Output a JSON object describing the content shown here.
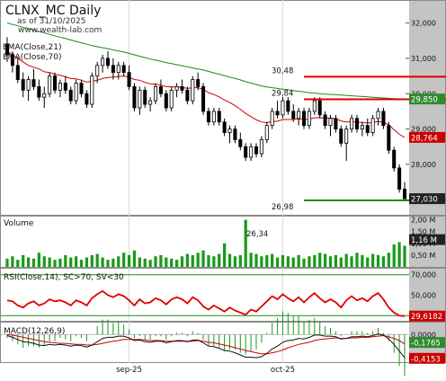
{
  "header": {
    "title": "CLNX_MC Daily",
    "subtitle": "as of 31/10/2025",
    "source": "www.wealth-lab.com"
  },
  "indicators": {
    "ema21_label": "EMA(Close,21)",
    "ema70_label": "EMA(Close,70)",
    "volume_label": "Volume",
    "rsi_label": "RSI(Close,14), SC>70, SV<30",
    "macd_label": "MACD(12,26,9)"
  },
  "colors": {
    "ema21": "#cc0000",
    "ema70": "#1a8a1a",
    "volume": "#1a9a1a",
    "rsi": "#dd0000",
    "rsi_bands": "#1a8a1a",
    "macd": "#111111",
    "macd_signal": "#cc0000",
    "macd_hist": "#1a9a1a",
    "axis_bg": "#c0c0c0",
    "resistance": "#dd0000",
    "support": "#1a8a1a"
  },
  "chart_data": [
    {
      "type": "candlestick",
      "ylim": [
        26.6,
        32.6
      ],
      "y_ticks": [
        27,
        28,
        29,
        30,
        31,
        32
      ],
      "y_tick_labels": [
        "27,000",
        "28,000",
        "29,000",
        "30,000",
        "31,000",
        "32,000"
      ],
      "x_tick_labels": [
        {
          "label": "sep-25",
          "index": 23
        },
        {
          "label": "oct-25",
          "index": 52
        }
      ],
      "candles": [
        [
          31.4,
          31.6,
          30.9,
          31.1
        ],
        [
          31.1,
          31.2,
          30.6,
          30.8
        ],
        [
          30.8,
          31.0,
          30.3,
          30.4
        ],
        [
          30.4,
          30.6,
          29.9,
          30.1
        ],
        [
          30.1,
          30.5,
          29.8,
          30.4
        ],
        [
          30.4,
          30.7,
          30.1,
          30.2
        ],
        [
          30.2,
          30.4,
          29.8,
          29.9
        ],
        [
          29.9,
          30.2,
          29.6,
          30.0
        ],
        [
          30.0,
          30.6,
          29.9,
          30.5
        ],
        [
          30.5,
          30.6,
          30.0,
          30.1
        ],
        [
          30.1,
          30.4,
          29.9,
          30.3
        ],
        [
          30.3,
          30.5,
          30.0,
          30.1
        ],
        [
          30.1,
          30.2,
          29.7,
          29.8
        ],
        [
          29.8,
          30.4,
          29.7,
          30.3
        ],
        [
          30.3,
          30.4,
          29.9,
          30.0
        ],
        [
          30.0,
          30.1,
          29.6,
          29.7
        ],
        [
          29.7,
          30.6,
          29.6,
          30.5
        ],
        [
          30.5,
          30.9,
          30.3,
          30.8
        ],
        [
          30.8,
          31.1,
          30.6,
          31.0
        ],
        [
          31.0,
          31.2,
          30.7,
          30.8
        ],
        [
          30.8,
          31.0,
          30.4,
          30.6
        ],
        [
          30.6,
          30.9,
          30.4,
          30.8
        ],
        [
          30.8,
          30.9,
          30.5,
          30.6
        ],
        [
          30.6,
          30.8,
          30.1,
          30.2
        ],
        [
          30.2,
          30.3,
          29.5,
          29.6
        ],
        [
          29.6,
          30.2,
          29.4,
          30.1
        ],
        [
          30.1,
          30.2,
          29.6,
          29.7
        ],
        [
          29.7,
          29.9,
          29.5,
          29.8
        ],
        [
          29.8,
          30.3,
          29.7,
          30.2
        ],
        [
          30.2,
          30.4,
          29.9,
          30.0
        ],
        [
          30.0,
          30.1,
          29.5,
          29.6
        ],
        [
          29.6,
          30.2,
          29.5,
          30.1
        ],
        [
          30.1,
          30.3,
          29.9,
          30.2
        ],
        [
          30.2,
          30.4,
          30.0,
          30.1
        ],
        [
          30.1,
          30.2,
          29.7,
          29.8
        ],
        [
          29.8,
          30.5,
          29.7,
          30.4
        ],
        [
          30.4,
          30.6,
          30.1,
          30.2
        ],
        [
          30.2,
          30.3,
          29.4,
          29.5
        ],
        [
          29.5,
          29.6,
          29.1,
          29.2
        ],
        [
          29.2,
          29.6,
          29.1,
          29.5
        ],
        [
          29.5,
          29.6,
          29.1,
          29.2
        ],
        [
          29.2,
          29.3,
          28.8,
          28.9
        ],
        [
          28.9,
          29.1,
          28.6,
          29.0
        ],
        [
          29.0,
          29.1,
          28.6,
          28.7
        ],
        [
          28.7,
          28.9,
          28.4,
          28.5
        ],
        [
          28.5,
          28.6,
          28.1,
          28.2
        ],
        [
          28.2,
          28.6,
          28.1,
          28.5
        ],
        [
          28.5,
          28.6,
          28.2,
          28.3
        ],
        [
          28.3,
          28.8,
          28.2,
          28.7
        ],
        [
          28.7,
          29.2,
          28.6,
          29.1
        ],
        [
          29.1,
          29.6,
          29.0,
          29.5
        ],
        [
          29.5,
          29.8,
          29.3,
          29.4
        ],
        [
          29.4,
          29.9,
          29.3,
          29.8
        ],
        [
          29.8,
          29.9,
          29.4,
          29.5
        ],
        [
          29.5,
          29.7,
          29.2,
          29.3
        ],
        [
          29.3,
          29.6,
          29.1,
          29.5
        ],
        [
          29.5,
          29.6,
          29.0,
          29.1
        ],
        [
          29.1,
          29.6,
          29.0,
          29.5
        ],
        [
          29.5,
          29.9,
          29.4,
          29.8
        ],
        [
          29.8,
          29.9,
          29.3,
          29.4
        ],
        [
          29.4,
          29.5,
          29.0,
          29.1
        ],
        [
          29.1,
          29.4,
          28.8,
          29.3
        ],
        [
          29.3,
          29.4,
          28.9,
          29.0
        ],
        [
          29.0,
          29.1,
          28.5,
          28.6
        ],
        [
          28.6,
          29.1,
          28.1,
          29.0
        ],
        [
          29.0,
          29.4,
          28.9,
          29.3
        ],
        [
          29.3,
          29.4,
          28.9,
          29.0
        ],
        [
          29.0,
          29.2,
          28.8,
          29.1
        ],
        [
          29.1,
          29.3,
          28.8,
          28.9
        ],
        [
          28.9,
          29.4,
          28.8,
          29.3
        ],
        [
          29.3,
          29.6,
          29.1,
          29.5
        ],
        [
          29.5,
          29.6,
          29.0,
          29.1
        ],
        [
          29.1,
          29.2,
          28.3,
          28.4
        ],
        [
          28.4,
          28.5,
          27.8,
          27.9
        ],
        [
          27.9,
          28.0,
          27.2,
          27.3
        ],
        [
          27.3,
          27.5,
          26.98,
          27.03
        ]
      ],
      "ema21": [
        31.2,
        31.1,
        31.0,
        30.9,
        30.8,
        30.75,
        30.7,
        30.62,
        30.6,
        30.55,
        30.52,
        30.48,
        30.43,
        30.42,
        30.38,
        30.33,
        30.35,
        30.38,
        30.43,
        30.46,
        30.47,
        30.49,
        30.5,
        30.47,
        30.4,
        30.38,
        30.32,
        30.28,
        30.27,
        30.24,
        30.2,
        30.19,
        30.19,
        30.18,
        30.15,
        30.17,
        30.17,
        30.12,
        30.03,
        29.98,
        29.91,
        29.82,
        29.75,
        29.66,
        29.56,
        29.44,
        29.35,
        29.26,
        29.2,
        29.18,
        29.21,
        29.22,
        29.27,
        29.27,
        29.27,
        29.29,
        29.27,
        29.28,
        29.32,
        29.32,
        29.31,
        29.31,
        29.29,
        29.23,
        29.2,
        29.21,
        29.19,
        29.19,
        29.17,
        29.18,
        29.21,
        29.2,
        29.12,
        28.98,
        28.85,
        28.76
      ],
      "ema70": [
        32.0,
        31.96,
        31.92,
        31.88,
        31.84,
        31.8,
        31.76,
        31.72,
        31.68,
        31.64,
        31.6,
        31.56,
        31.52,
        31.48,
        31.44,
        31.4,
        31.36,
        31.33,
        31.3,
        31.27,
        31.24,
        31.21,
        31.18,
        31.14,
        31.1,
        31.06,
        31.02,
        30.98,
        30.95,
        30.92,
        30.88,
        30.85,
        30.82,
        30.79,
        30.76,
        30.73,
        30.7,
        30.67,
        30.63,
        30.59,
        30.55,
        30.51,
        30.47,
        30.43,
        30.39,
        30.34,
        30.3,
        30.26,
        30.22,
        30.19,
        30.17,
        30.15,
        30.13,
        30.11,
        30.09,
        30.07,
        30.05,
        30.03,
        30.02,
        30.0,
        29.99,
        29.98,
        29.97,
        29.96,
        29.95,
        29.94,
        29.93,
        29.92,
        29.91,
        29.9,
        29.89,
        29.88,
        29.87,
        29.86,
        29.855,
        29.85
      ],
      "levels": [
        {
          "label": "30,48",
          "value": 30.48,
          "from_index": 56,
          "to_index": 84,
          "color": "red"
        },
        {
          "label": "29,84",
          "value": 29.84,
          "from_index": 56,
          "to_index": 84,
          "color": "red"
        },
        {
          "label": "26,98",
          "value": 26.98,
          "from_index": 56,
          "to_index": 84,
          "color": "green"
        }
      ],
      "last_values": [
        {
          "series": "ema70",
          "label": "29,850",
          "value": 29.85
        },
        {
          "series": "ema21",
          "label": "28,764",
          "value": 28.764
        },
        {
          "series": "close",
          "label": "27,030",
          "value": 27.03
        }
      ]
    },
    {
      "type": "bar",
      "ylim": [
        0,
        2.1
      ],
      "y_ticks": [
        0.5,
        1.0,
        1.5,
        2.0
      ],
      "y_tick_labels": [
        "0,50 M",
        "1,00 M",
        "1,50 M",
        "2,00 M"
      ],
      "annotation": {
        "label": "26,34"
      },
      "values": [
        0.35,
        0.45,
        0.3,
        0.5,
        0.4,
        0.35,
        0.6,
        0.45,
        0.4,
        0.3,
        0.35,
        0.5,
        0.4,
        0.45,
        0.3,
        0.4,
        0.5,
        0.55,
        0.4,
        0.3,
        0.35,
        0.45,
        0.6,
        0.5,
        0.7,
        0.4,
        0.35,
        0.3,
        0.45,
        0.5,
        0.4,
        0.35,
        0.3,
        0.45,
        0.55,
        0.5,
        0.6,
        0.7,
        0.5,
        0.45,
        0.55,
        1.0,
        0.55,
        0.45,
        0.5,
        2.0,
        0.6,
        0.55,
        0.45,
        0.5,
        0.55,
        0.4,
        0.5,
        0.45,
        0.4,
        0.5,
        0.35,
        0.45,
        0.5,
        0.6,
        0.55,
        0.45,
        0.5,
        0.4,
        0.55,
        0.45,
        0.6,
        0.5,
        0.4,
        0.55,
        0.5,
        0.45,
        0.6,
        0.95,
        1.05,
        0.9
      ],
      "last_label": "1,16 M",
      "last_value": 1.16
    },
    {
      "type": "line",
      "ylim": [
        25,
        75
      ],
      "y_ticks": [
        30,
        50,
        70
      ],
      "y_tick_labels": [
        "30,000",
        "50,000",
        "70,000"
      ],
      "bands": [
        30,
        70
      ],
      "values": [
        45,
        44,
        40,
        38,
        42,
        44,
        40,
        42,
        46,
        44,
        45,
        43,
        40,
        45,
        43,
        40,
        47,
        51,
        54,
        50,
        48,
        51,
        49,
        45,
        40,
        46,
        42,
        43,
        47,
        45,
        41,
        46,
        48,
        46,
        42,
        48,
        45,
        39,
        36,
        40,
        37,
        34,
        38,
        35,
        33,
        31,
        36,
        34,
        39,
        44,
        49,
        46,
        51,
        47,
        44,
        48,
        43,
        48,
        52,
        47,
        43,
        46,
        43,
        38,
        45,
        49,
        45,
        47,
        44,
        49,
        52,
        46,
        38,
        33,
        30,
        29.6
      ],
      "last_label": "29,6182",
      "last_value": 29.6182
    },
    {
      "type": "line",
      "ylim": [
        -0.5,
        0.2
      ],
      "y_ticks": [
        0.0
      ],
      "y_tick_labels": [
        "0,0000"
      ],
      "series": [
        {
          "name": "MACD",
          "values": [
            -0.02,
            -0.05,
            -0.09,
            -0.13,
            -0.14,
            -0.16,
            -0.19,
            -0.2,
            -0.18,
            -0.19,
            -0.18,
            -0.19,
            -0.21,
            -0.19,
            -0.2,
            -0.23,
            -0.19,
            -0.13,
            -0.07,
            -0.05,
            -0.05,
            -0.03,
            -0.03,
            -0.06,
            -0.11,
            -0.1,
            -0.13,
            -0.14,
            -0.12,
            -0.12,
            -0.15,
            -0.13,
            -0.11,
            -0.11,
            -0.13,
            -0.1,
            -0.1,
            -0.15,
            -0.21,
            -0.22,
            -0.25,
            -0.29,
            -0.3,
            -0.33,
            -0.37,
            -0.41,
            -0.41,
            -0.42,
            -0.4,
            -0.34,
            -0.26,
            -0.21,
            -0.14,
            -0.11,
            -0.1,
            -0.07,
            -0.08,
            -0.05,
            -0.01,
            -0.01,
            -0.03,
            -0.03,
            -0.04,
            -0.08,
            -0.07,
            -0.04,
            -0.04,
            -0.03,
            -0.04,
            -0.02,
            0.01,
            -0.01,
            -0.08,
            -0.18,
            -0.3,
            -0.42
          ]
        },
        {
          "name": "Signal",
          "values": [
            0.0,
            -0.01,
            -0.03,
            -0.05,
            -0.07,
            -0.09,
            -0.11,
            -0.13,
            -0.14,
            -0.15,
            -0.16,
            -0.16,
            -0.17,
            -0.18,
            -0.18,
            -0.19,
            -0.19,
            -0.18,
            -0.16,
            -0.14,
            -0.12,
            -0.11,
            -0.09,
            -0.09,
            -0.09,
            -0.09,
            -0.1,
            -0.11,
            -0.11,
            -0.11,
            -0.12,
            -0.12,
            -0.12,
            -0.12,
            -0.12,
            -0.12,
            -0.11,
            -0.12,
            -0.14,
            -0.15,
            -0.17,
            -0.19,
            -0.21,
            -0.24,
            -0.26,
            -0.29,
            -0.31,
            -0.33,
            -0.35,
            -0.35,
            -0.33,
            -0.31,
            -0.28,
            -0.24,
            -0.21,
            -0.18,
            -0.16,
            -0.14,
            -0.11,
            -0.09,
            -0.08,
            -0.07,
            -0.06,
            -0.07,
            -0.07,
            -0.06,
            -0.06,
            -0.05,
            -0.05,
            -0.04,
            -0.03,
            -0.02,
            -0.04,
            -0.07,
            -0.11,
            -0.17
          ]
        }
      ],
      "last_values": [
        {
          "label": "-0,1765",
          "value": -0.1765
        },
        {
          "label": "-0,4153",
          "value": -0.4153
        }
      ]
    }
  ]
}
